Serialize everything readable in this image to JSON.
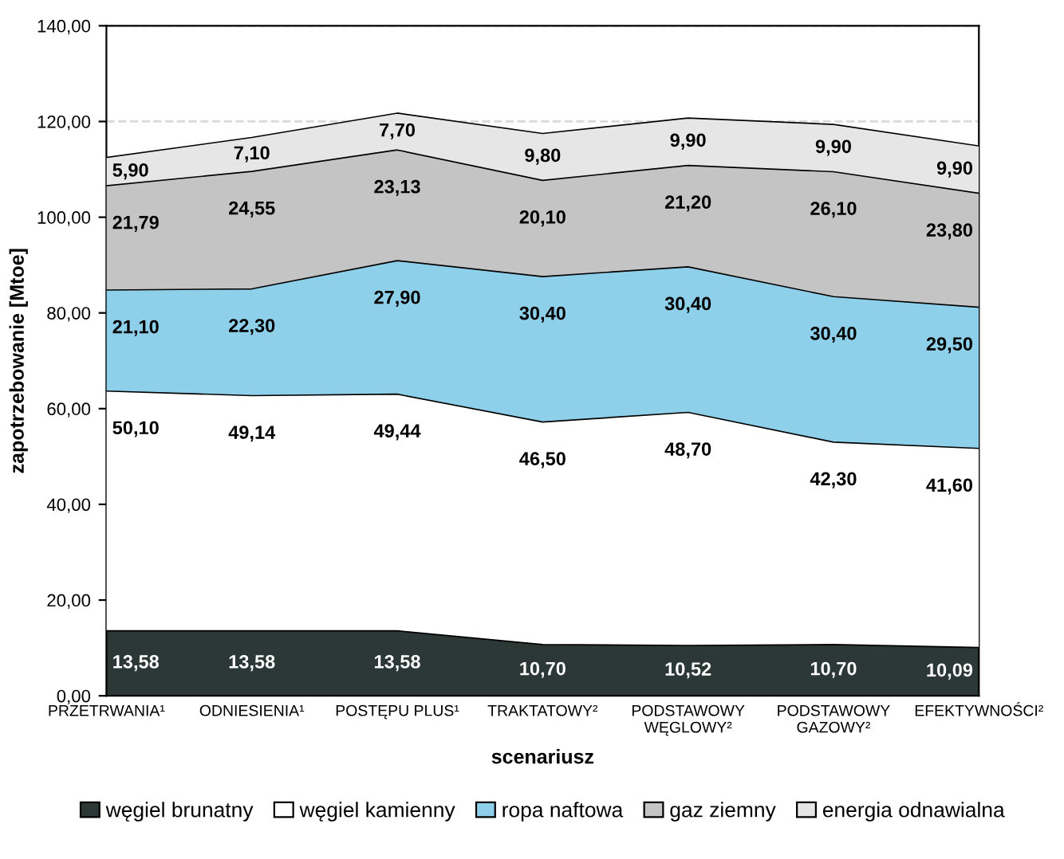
{
  "chart_data": {
    "type": "area",
    "stacked": true,
    "xlabel": "scenariusz",
    "ylabel": "zapotrzebowanie [Mtoe]",
    "categories": [
      "PRZETRWANIA¹",
      "ODNIESIENIA¹",
      "POSTĘPU PLUS¹",
      "TRAKTATOWY²",
      "PODSTAWOWY\nWĘGLOWY²",
      "PODSTAWOWY\nGAZOWY²",
      "EFEKTYWNOŚCI²"
    ],
    "series": [
      {
        "name": "węgiel brunatny",
        "color": "#2b3835",
        "values": [
          13.58,
          13.58,
          13.58,
          10.7,
          10.52,
          10.7,
          10.09
        ],
        "value_labels": [
          "13,58",
          "13,58",
          "13,58",
          "10,70",
          "10,52",
          "10,70",
          "10,09"
        ]
      },
      {
        "name": "węgiel kamienny",
        "color": "#ffffff",
        "values": [
          50.1,
          49.14,
          49.44,
          46.5,
          48.7,
          42.3,
          41.6
        ],
        "value_labels": [
          "50,10",
          "49,14",
          "49,44",
          "46,50",
          "48,70",
          "42,30",
          "41,60"
        ]
      },
      {
        "name": "ropa naftowa",
        "color": "#8ecfea",
        "values": [
          21.1,
          22.3,
          27.9,
          30.4,
          30.4,
          30.4,
          29.5
        ],
        "value_labels": [
          "21,10",
          "22,30",
          "27,90",
          "30,40",
          "30,40",
          "30,40",
          "29,50"
        ]
      },
      {
        "name": "gaz ziemny",
        "color": "#c4c4c4",
        "values": [
          21.79,
          24.55,
          23.13,
          20.1,
          21.2,
          26.1,
          23.8
        ],
        "value_labels": [
          "21,79",
          "24,55",
          "23,13",
          "20,10",
          "21,20",
          "26,10",
          "23,80"
        ]
      },
      {
        "name": "energia odnawialna",
        "color": "#e6e6e6",
        "values": [
          5.9,
          7.1,
          7.7,
          9.8,
          9.9,
          9.9,
          9.9
        ],
        "value_labels": [
          "5,90",
          "7,10",
          "7,70",
          "9,80",
          "9,90",
          "9,90",
          "9,90"
        ]
      }
    ],
    "ylim": [
      0,
      140
    ],
    "yticks": [
      {
        "value": 0,
        "label": "0,00"
      },
      {
        "value": 20,
        "label": "20,00"
      },
      {
        "value": 40,
        "label": "40,00"
      },
      {
        "value": 60,
        "label": "60,00"
      },
      {
        "value": 80,
        "label": "80,00"
      },
      {
        "value": 100,
        "label": "100,00"
      },
      {
        "value": 120,
        "label": "120,00"
      },
      {
        "value": 140,
        "label": "140,00"
      }
    ],
    "grid": "y",
    "legend": "bottom"
  }
}
